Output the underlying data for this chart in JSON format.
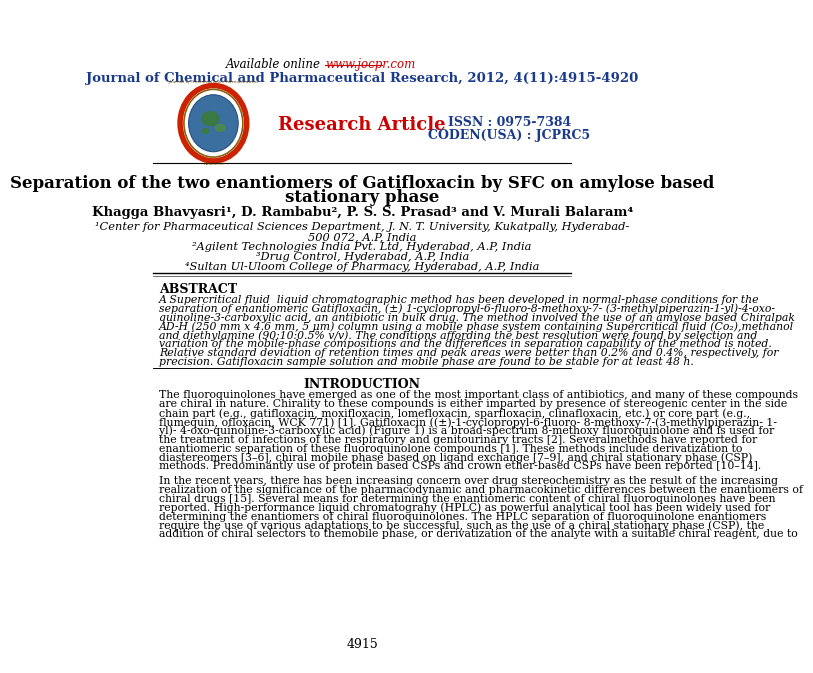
{
  "available_online_text": "Available online ",
  "available_online_url": "www.jocpr.com",
  "journal_title": "Journal of Chemical and Pharmaceutical Research, 2012, 4(11):4915-4920",
  "research_article_label": "Research Article",
  "issn_line1": "ISSN : 0975-7384",
  "issn_line2": "CODEN(USA) : JCPRC5",
  "paper_title_line1": "Separation of the two enantiomers of Gatifloxacin by SFC on amylose based",
  "paper_title_line2": "stationary phase",
  "authors": "Khagga Bhavyasri¹, D. Rambabu², P. S. S. Prasad³ and V. Murali Balaram⁴",
  "affil1a": "¹Center for Pharmaceutical Sciences Department, J. N. T. University, Kukatpally, Hyderabad-",
  "affil1b": "500 072, A.P, India",
  "affil2": "²Agilent Technologies India Pvt. Ltd, Hyderabad, A.P, India",
  "affil3": "³Drug Control, Hyderabad, A.P, India",
  "affil4": "⁴Sultan Ul-Uloom College of Pharmacy, Hyderabad, A.P, India",
  "abstract_title": "ABSTRACT",
  "intro_title": "INTRODUCTION",
  "page_number": "4915",
  "journal_color": "#1a3a8a",
  "url_color": "#cc0000",
  "research_article_color": "#cc0000",
  "issn_color": "#1a3a8a",
  "title_color": "#000000",
  "bg_color": "#ffffff",
  "abstract_lines": [
    "A Supercritical fluid  liquid chromatographic method has been developed in normal-phase conditions for the",
    "separation of enantiomeric Gatifloxacin, (±) 1-cyclopropyl-6-fluoro-8-methoxy-7- (3-methylpiperazin-1-yl)-4-oxo-",
    "quinoline-3-carboxylic acid, an antibiotic in bulk drug. The method involved the use of an amylose based Chiralpak",
    "AD-H (250 mm x 4.6 mm, 5 μm) column using a mobile phase system containing Supercritical fluid (Co₂),methanol",
    "and diethylamine (90:10:0.5% v/v). The conditions affording the best resolution were found by selection and",
    "variation of the mobile-phase compositions and the differences in separation capability of the method is noted.",
    "Relative standard deviation of retention times and peak areas were better than 0.2% and 0.4%, respectively, for",
    "precision. Gatifloxacin sample solution and mobile phase are found to be stable for at least 48 h."
  ],
  "intro1_lines": [
    "The fluoroquinolones have emerged as one of the most important class of antibiotics, and many of these compounds",
    "are chiral in nature. Chirality to these compounds is either imparted by presence of stereogenic center in the side",
    "chain part (e.g., gatifloxacin, moxifloxacin, lomefloxacin, sparfloxacin, clinafloxacin, etc.) or core part (e.g.,",
    "flumequin, ofloxacin, WCK 771) [1]. Gatifloxacin ((±)-1-cyclopropyl-6-fluoro- 8-methoxy-7-(3-methylpiperazin- 1-",
    "yl)- 4-oxo-quinoline-3-carboxylic acid) (Figure 1) is a broad-spectrum 8-methoxy fluoroquinolone and is used for",
    "the treatment of infections of the respiratory and genitourinary tracts [2]. Severalmethods have reported for",
    "enantiomeric separation of these fluoroquinolone compounds [1]. These methods include derivatization to",
    "diastereomers [3–6], chiral mobile phase based on ligand exchange [7–9], and chiral stationary phase (CSP)",
    "methods. Predominantly use of protein based CSPs and crown ether-based CSPs have been reported [10–14]."
  ],
  "intro2_lines": [
    "In the recent years, there has been increasing concern over drug stereochemistry as the result of the increasing",
    "realization of the significance of the pharmacodynamic and pharmacokinetic differences between the enantiomers of",
    "chiral drugs [15]. Several means for determining the enantiomeric content of chiral fluoroquinolones have been",
    "reported. High-performance liquid chromatograhy (HPLC) as powerful analytical tool has been widely used for",
    "determining the enantiomers of chiral fluoroquinolones. The HPLC separation of fluoroquinolone enantiomers",
    "require the use of various adaptations to be successful, such as the use of a chiral stationary phase (CSP), the",
    "addition of chiral selectors to themobile phase, or derivatization of the analyte with a suitable chiral reagent, due to"
  ]
}
